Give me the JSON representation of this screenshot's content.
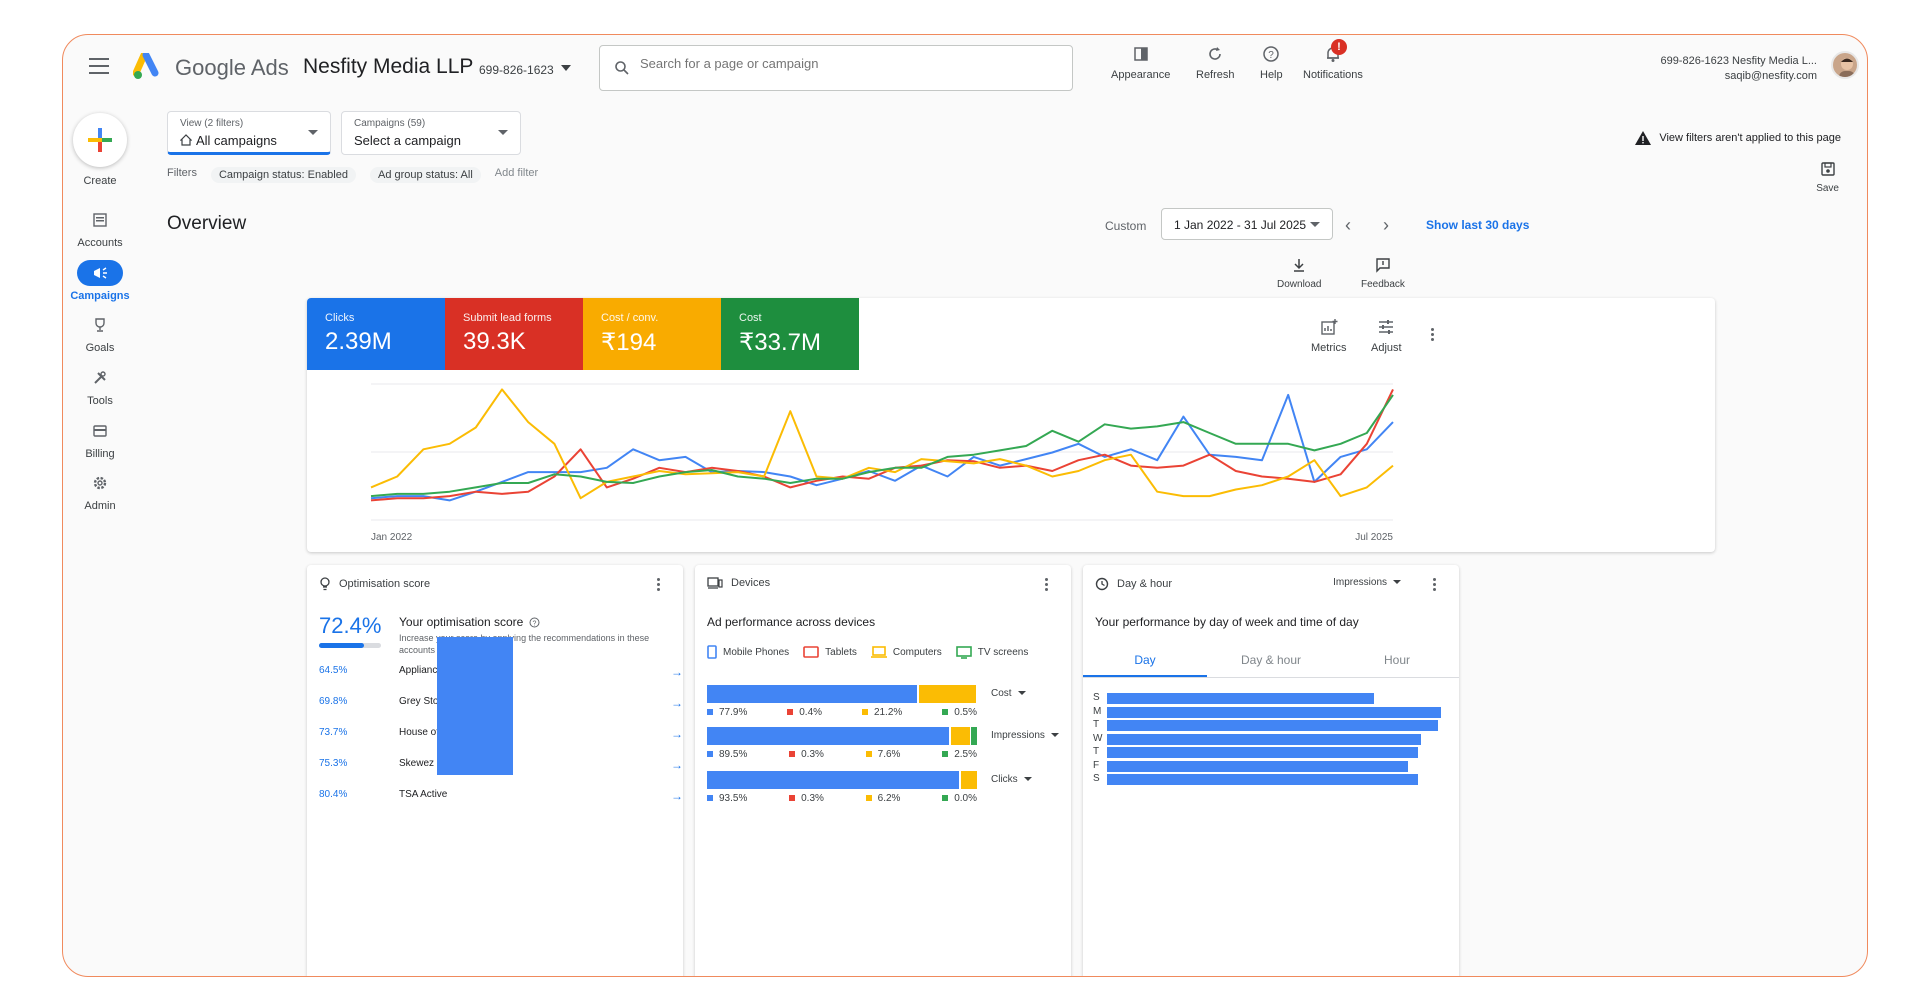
{
  "header": {
    "brand": "Google Ads",
    "account_name": "Nesfity Media LLP",
    "account_id": "699-826-1623",
    "search_placeholder": "Search for a page or campaign",
    "actions": [
      {
        "label": "Appearance",
        "icon": "appearance-icon"
      },
      {
        "label": "Refresh",
        "icon": "refresh-icon"
      },
      {
        "label": "Help",
        "icon": "help-icon"
      },
      {
        "label": "Notifications",
        "icon": "bell-icon"
      }
    ],
    "notification_badge": "!",
    "user_line1": "699-826-1623 Nesfity Media L...",
    "user_line2": "saqib@nesfity.com"
  },
  "sidebar": {
    "create_label": "Create",
    "items": [
      {
        "label": "Accounts",
        "icon": "accounts-icon"
      },
      {
        "label": "Campaigns",
        "icon": "campaigns-icon",
        "active": true
      },
      {
        "label": "Goals",
        "icon": "trophy-icon"
      },
      {
        "label": "Tools",
        "icon": "tools-icon"
      },
      {
        "label": "Billing",
        "icon": "billing-icon"
      },
      {
        "label": "Admin",
        "icon": "gear-icon"
      }
    ]
  },
  "filters": {
    "view_small": "View (2 filters)",
    "view_value": "All campaigns",
    "campaigns_small": "Campaigns (59)",
    "campaigns_value": "Select a campaign",
    "filters_label": "Filters",
    "chips": [
      "Campaign status: Enabled",
      "Ad group status: All"
    ],
    "add_filter": "Add filter",
    "warning": "View filters aren't applied to this page",
    "save_label": "Save"
  },
  "overview": {
    "title": "Overview",
    "custom_label": "Custom",
    "date_range": "1 Jan 2022 - 31 Jul 2025",
    "show_last": "Show last 30 days",
    "download_label": "Download",
    "feedback_label": "Feedback"
  },
  "metrics": [
    {
      "label": "Clicks",
      "value": "2.39M",
      "color": "#1a73e8"
    },
    {
      "label": "Submit lead forms",
      "value": "39.3K",
      "color": "#d93025"
    },
    {
      "label": "Cost / conv.",
      "value": "₹194",
      "color": "#f9ab00"
    },
    {
      "label": "Cost",
      "value": "₹33.7M",
      "color": "#1e8e3e"
    }
  ],
  "chart_actions": {
    "metrics_label": "Metrics",
    "adjust_label": "Adjust"
  },
  "chart_data": {
    "type": "line",
    "x_start_label": "Jan 2022",
    "x_end_label": "Jul 2025",
    "series": [
      {
        "color": "#4285f4",
        "values": [
          20,
          22,
          22,
          18,
          26,
          35,
          44,
          44,
          44,
          48,
          65,
          55,
          58,
          44,
          45,
          44,
          40,
          32,
          38,
          45,
          36,
          50,
          40,
          58,
          50,
          56,
          62,
          70,
          58,
          65,
          55,
          95,
          60,
          58,
          55,
          115,
          35,
          58,
          65,
          90
        ]
      },
      {
        "color": "#ea4335",
        "values": [
          18,
          20,
          20,
          22,
          26,
          24,
          26,
          40,
          65,
          30,
          38,
          48,
          44,
          48,
          45,
          40,
          30,
          36,
          40,
          38,
          48,
          50,
          55,
          54,
          48,
          50,
          45,
          55,
          60,
          50,
          48,
          50,
          60,
          45,
          40,
          38,
          35,
          42,
          70,
          120
        ]
      },
      {
        "color": "#fbbc04",
        "values": [
          30,
          40,
          65,
          70,
          85,
          120,
          90,
          70,
          20,
          35,
          40,
          45,
          42,
          43,
          44,
          40,
          100,
          40,
          38,
          48,
          44,
          56,
          54,
          52,
          56,
          50,
          40,
          45,
          55,
          60,
          26,
          22,
          22,
          28,
          32,
          40,
          55,
          22,
          30,
          50
        ]
      },
      {
        "color": "#34a853",
        "values": [
          22,
          24,
          24,
          26,
          30,
          34,
          34,
          42,
          40,
          35,
          34,
          40,
          44,
          46,
          40,
          38,
          34,
          38,
          38,
          44,
          48,
          48,
          58,
          60,
          64,
          68,
          82,
          72,
          88,
          84,
          86,
          90,
          80,
          70,
          70,
          70,
          64,
          70,
          80,
          115
        ]
      }
    ]
  },
  "optimisation": {
    "header": "Optimisation score",
    "score": "72.4%",
    "score_fraction": 0.724,
    "title": "Your optimisation score",
    "subtitle": "Increase your score by applying the recommendations in these accounts",
    "rows": [
      {
        "pct": "64.5%",
        "name": "Applianc"
      },
      {
        "pct": "69.8%",
        "name": "Grey Stor"
      },
      {
        "pct": "73.7%",
        "name": "House of"
      },
      {
        "pct": "75.3%",
        "name": "Skewez E"
      },
      {
        "pct": "80.4%",
        "name": "TSA Active"
      }
    ]
  },
  "devices": {
    "header": "Devices",
    "title": "Ad performance across devices",
    "legend": [
      {
        "label": "Mobile Phones",
        "color": "#4285f4"
      },
      {
        "label": "Tablets",
        "color": "#ea4335"
      },
      {
        "label": "Computers",
        "color": "#fbbc04"
      },
      {
        "label": "TV screens",
        "color": "#34a853"
      }
    ],
    "bars": [
      {
        "metric": "Cost",
        "values": [
          77.9,
          0.4,
          21.2,
          0.5
        ],
        "labels": [
          "77.9%",
          "0.4%",
          "21.2%",
          "0.5%"
        ]
      },
      {
        "metric": "Impressions",
        "values": [
          89.5,
          0.3,
          7.6,
          2.5
        ],
        "labels": [
          "89.5%",
          "0.3%",
          "7.6%",
          "2.5%"
        ]
      },
      {
        "metric": "Clicks",
        "values": [
          93.5,
          0.3,
          6.2,
          0.0
        ],
        "labels": [
          "93.5%",
          "0.3%",
          "6.2%",
          "0.0%"
        ]
      }
    ]
  },
  "dayhour": {
    "header": "Day & hour",
    "dropdown": "Impressions",
    "title": "Your performance by day of week and time of day",
    "tabs": [
      "Day",
      "Day & hour",
      "Hour"
    ],
    "days": [
      {
        "day": "S",
        "value": 80
      },
      {
        "day": "M",
        "value": 100
      },
      {
        "day": "T",
        "value": 99
      },
      {
        "day": "W",
        "value": 94
      },
      {
        "day": "T",
        "value": 93
      },
      {
        "day": "F",
        "value": 90
      },
      {
        "day": "S",
        "value": 93
      }
    ]
  }
}
